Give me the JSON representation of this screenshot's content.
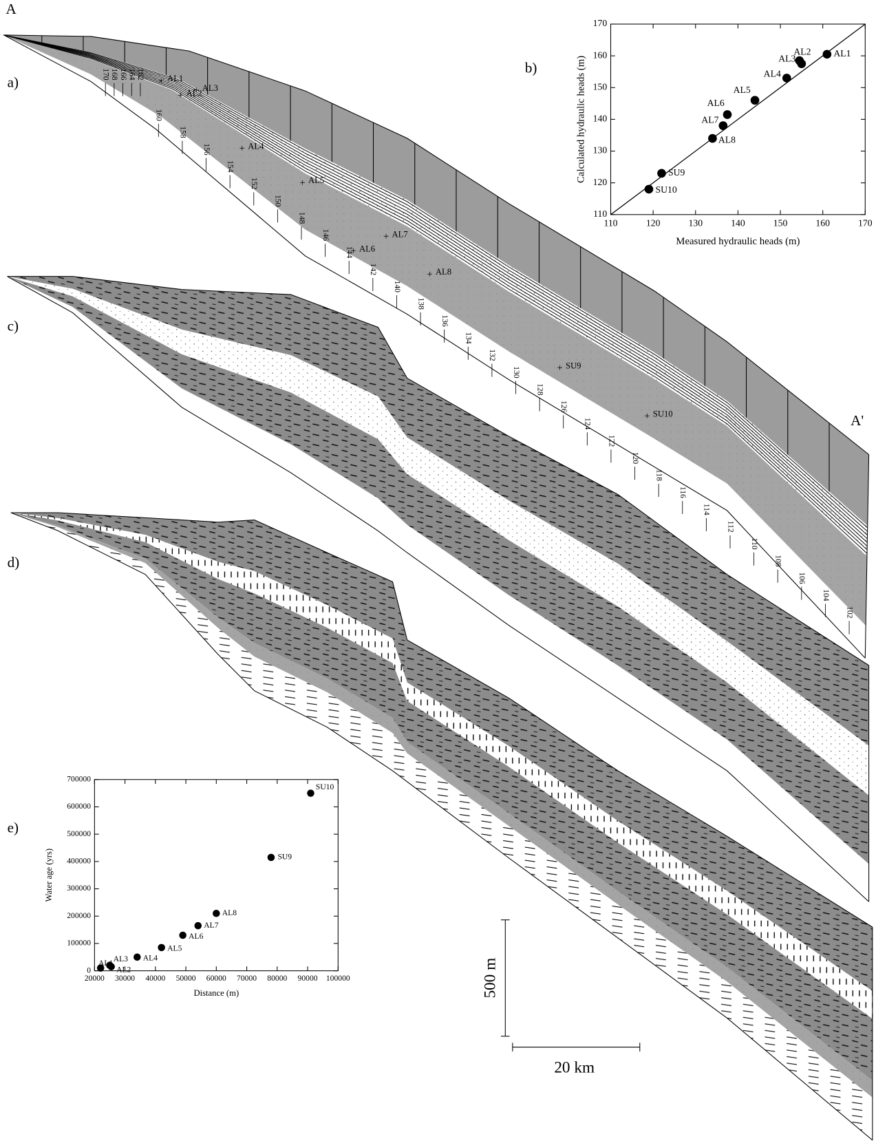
{
  "panels": {
    "A": "A",
    "A_prime": "A'",
    "a": "a)",
    "b": "b)",
    "c": "c)",
    "d": "d)",
    "e": "e)"
  },
  "section_a": {
    "contours": [
      170,
      168,
      166,
      164,
      162,
      160,
      158,
      156,
      154,
      152,
      150,
      148,
      146,
      144,
      142,
      140,
      138,
      136,
      134,
      132,
      130,
      128,
      126,
      124,
      122,
      120,
      118,
      116,
      114,
      112,
      110,
      108,
      106,
      104,
      102
    ],
    "wells": [
      "AL1",
      "AL2",
      "AL3",
      "AL4",
      "AL5",
      "AL6",
      "AL7",
      "AL8",
      "SU9",
      "SU10"
    ]
  },
  "scale_bars": {
    "vertical": "500 m",
    "horizontal": "20 km"
  },
  "chart_data": [
    {
      "type": "scatter",
      "xlabel": "Measured hydraulic heads (m)",
      "ylabel": "Calculated hydraulic heads (m)",
      "labels": [
        "AL1",
        "AL2",
        "AL3",
        "AL4",
        "AL5",
        "AL6",
        "AL7",
        "AL8",
        "SU9",
        "SU10"
      ],
      "x": [
        161,
        154.5,
        155,
        151.5,
        144,
        137.5,
        136.5,
        134,
        122,
        119
      ],
      "y": [
        160.5,
        158.5,
        157.5,
        153,
        146,
        141.5,
        138,
        134,
        123,
        118
      ],
      "xlim": [
        110,
        170
      ],
      "ylim": [
        110,
        170
      ],
      "xticks": [
        110,
        120,
        130,
        140,
        150,
        160,
        170
      ],
      "yticks": [
        110,
        120,
        130,
        140,
        150,
        160,
        170
      ],
      "color": "#000000",
      "identity_line": true
    },
    {
      "type": "scatter",
      "xlabel": "Distance (m)",
      "ylabel": "Water age (yrs)",
      "labels": [
        "AL1",
        "AL2",
        "AL3",
        "AL4",
        "AL5",
        "AL6",
        "AL7",
        "AL8",
        "SU9",
        "SU10"
      ],
      "x": [
        22000,
        25500,
        25000,
        34000,
        42000,
        49000,
        54000,
        60000,
        78000,
        91000
      ],
      "y": [
        10000,
        15000,
        20000,
        50000,
        85000,
        130000,
        165000,
        210000,
        415000,
        650000
      ],
      "xlim": [
        20000,
        100000
      ],
      "ylim": [
        0,
        700000
      ],
      "xticks": [
        20000,
        30000,
        40000,
        50000,
        60000,
        70000,
        80000,
        90000,
        100000
      ],
      "yticks": [
        0,
        100000,
        200000,
        300000,
        400000,
        500000,
        600000,
        700000
      ],
      "color": "#000000"
    }
  ]
}
